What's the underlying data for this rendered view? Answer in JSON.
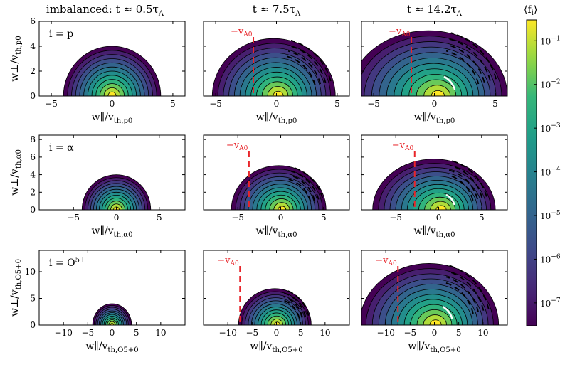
{
  "columns": [
    {
      "title": "imbalanced:  t ≈ 0.5τ_A",
      "title_main": "imbalanced:  t ≈ 0.5τ",
      "title_sub": "A"
    },
    {
      "title": "t ≈ 7.5τ_A",
      "title_main": "t ≈ 7.5τ",
      "title_sub": "A"
    },
    {
      "title": "t ≈ 14.2τ_A",
      "title_main": "t ≈ 14.2τ",
      "title_sub": "A"
    }
  ],
  "rows": [
    {
      "species": "i = p",
      "species_main": "i = p",
      "species_sup": "",
      "ylabel_main": "w⊥/v",
      "ylabel_sub": "th,p0",
      "xlabel_main": "w∥/v",
      "xlabel_sub": "th,p0",
      "xlim": [
        -6,
        6
      ],
      "ylim": [
        0,
        6
      ],
      "xticks": [
        -5,
        0,
        5
      ],
      "yticks": [
        0,
        2,
        4,
        6
      ],
      "xtick_labels": [
        "−5",
        "0",
        "5"
      ],
      "ytick_labels": [
        "0",
        "2",
        "4",
        "6"
      ]
    },
    {
      "species": "i = α",
      "species_main": "i = α",
      "species_sup": "",
      "ylabel_main": "w⊥/v",
      "ylabel_sub": "th,α0",
      "xlabel_main": "w∥/v",
      "xlabel_sub": "th,α0",
      "xlim": [
        -9,
        8
      ],
      "ylim": [
        0,
        8.5
      ],
      "xticks": [
        -5,
        0,
        5
      ],
      "yticks": [
        0,
        2,
        4,
        6,
        8
      ],
      "xtick_labels": [
        "−5",
        "0",
        "5"
      ],
      "ytick_labels": [
        "0",
        "2",
        "4",
        "6",
        "8"
      ]
    },
    {
      "species": "i = O5+",
      "species_main": "i = O",
      "species_sup": "5+",
      "ylabel_main": "w⊥/v",
      "ylabel_sub": "th,O5+0",
      "xlabel_main": "w∥/v",
      "xlabel_sub": "th,O5+0",
      "xlim": [
        -15,
        15
      ],
      "ylim": [
        0,
        14
      ],
      "xticks": [
        -10,
        -5,
        0,
        5,
        10
      ],
      "yticks": [
        0,
        5,
        10
      ],
      "xtick_labels": [
        "−10",
        "−5",
        "0",
        "5",
        "10"
      ],
      "ytick_labels": [
        "0",
        "5",
        "10"
      ]
    }
  ],
  "vA_label_main": "−v",
  "vA_label_sub": "A0",
  "colorbar": {
    "label": "⟨f_i⟩",
    "label_main": "⟨f",
    "label_sub": "i",
    "label_close": "⟩",
    "scale": "log",
    "range": [
      3e-08,
      0.3
    ],
    "ticks": [
      0.1,
      0.01,
      0.001,
      0.0001,
      1e-05,
      1e-06,
      1e-07
    ],
    "tick_bases": [
      "10",
      "10",
      "10",
      "10",
      "10",
      "10",
      "10"
    ],
    "tick_exps": [
      "−1",
      "−2",
      "−3",
      "−4",
      "−5",
      "−6",
      "−7"
    ]
  },
  "chart_data": {
    "type": "heatmap",
    "panels": [
      {
        "row": 0,
        "col": 0,
        "radius": 4.0,
        "vA_line": null
      },
      {
        "row": 0,
        "col": 1,
        "radius": 4.4,
        "vA_line": -1.9
      },
      {
        "row": 0,
        "col": 2,
        "radius": 5.0,
        "vA_line": -1.9
      },
      {
        "row": 1,
        "col": 0,
        "radius": 4.0,
        "vA_line": null
      },
      {
        "row": 1,
        "col": 1,
        "radius": 4.8,
        "vA_line": -3.7
      },
      {
        "row": 1,
        "col": 2,
        "radius": 5.5,
        "vA_line": -2.8
      },
      {
        "row": 2,
        "col": 0,
        "radius": 4.0,
        "vA_line": null
      },
      {
        "row": 2,
        "col": 1,
        "radius": 6.5,
        "vA_line": -7.5
      },
      {
        "row": 2,
        "col": 2,
        "radius": 11.0,
        "vA_line": -7.5
      }
    ]
  },
  "colors": {
    "vA_line": "#e8262b",
    "contour": "#000000"
  }
}
